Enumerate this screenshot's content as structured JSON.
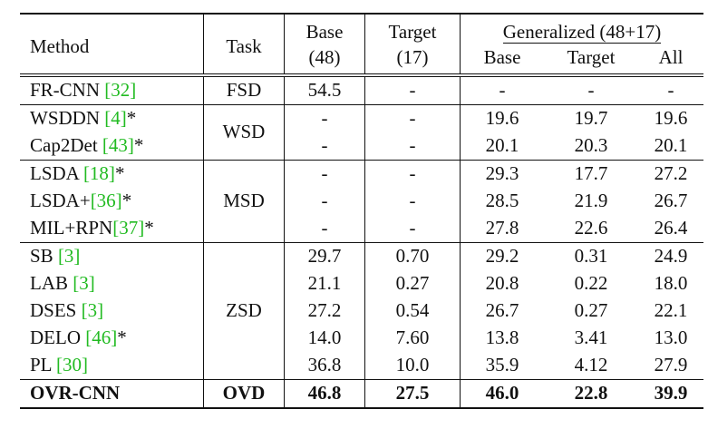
{
  "header": {
    "method": "Method",
    "task": "Task",
    "base_line1": "Base",
    "base_line2": "(48)",
    "target_line1": "Target",
    "target_line2": "(17)",
    "generalized": "Generalized (48+17)",
    "gen_base": "Base",
    "gen_target": "Target",
    "gen_all": "All"
  },
  "groups": [
    {
      "task": "FSD",
      "rows": [
        {
          "name": "FR-CNN ",
          "cite": "[32]",
          "suffix": "",
          "base": "54.5",
          "target": "-",
          "gbase": "-",
          "gtarget": "-",
          "gall": "-"
        }
      ]
    },
    {
      "task": "WSD",
      "rows": [
        {
          "name": "WSDDN ",
          "cite": "[4]",
          "suffix": "*",
          "base": "-",
          "target": "-",
          "gbase": "19.6",
          "gtarget": "19.7",
          "gall": "19.6"
        },
        {
          "name": "Cap2Det ",
          "cite": "[43]",
          "suffix": "*",
          "base": "-",
          "target": "-",
          "gbase": "20.1",
          "gtarget": "20.3",
          "gall": "20.1"
        }
      ]
    },
    {
      "task": "MSD",
      "rows": [
        {
          "name": "LSDA ",
          "cite": "[18]",
          "suffix": "*",
          "base": "-",
          "target": "-",
          "gbase": "29.3",
          "gtarget": "17.7",
          "gall": "27.2"
        },
        {
          "name": "LSDA+",
          "cite": "[36]",
          "suffix": "*",
          "base": "-",
          "target": "-",
          "gbase": "28.5",
          "gtarget": "21.9",
          "gall": "26.7"
        },
        {
          "name": "MIL+RPN",
          "cite": "[37]",
          "suffix": "*",
          "base": "-",
          "target": "-",
          "gbase": "27.8",
          "gtarget": "22.6",
          "gall": "26.4"
        }
      ]
    },
    {
      "task": "ZSD",
      "rows": [
        {
          "name": "SB ",
          "cite": "[3]",
          "suffix": "",
          "base": "29.7",
          "target": "0.70",
          "gbase": "29.2",
          "gtarget": "0.31",
          "gall": "24.9"
        },
        {
          "name": "LAB ",
          "cite": "[3]",
          "suffix": "",
          "base": "21.1",
          "target": "0.27",
          "gbase": "20.8",
          "gtarget": "0.22",
          "gall": "18.0"
        },
        {
          "name": "DSES ",
          "cite": "[3]",
          "suffix": "",
          "base": "27.2",
          "target": "0.54",
          "gbase": "26.7",
          "gtarget": "0.27",
          "gall": "22.1"
        },
        {
          "name": "DELO ",
          "cite": "[46]",
          "suffix": "*",
          "base": "14.0",
          "target": "7.60",
          "gbase": "13.8",
          "gtarget": "3.41",
          "gall": "13.0"
        },
        {
          "name": "PL ",
          "cite": "[30]",
          "suffix": "",
          "base": "36.8",
          "target": "10.0",
          "gbase": "35.9",
          "gtarget": "4.12",
          "gall": "27.9"
        }
      ]
    }
  ],
  "final": {
    "name": "OVR-CNN",
    "task": "OVD",
    "base": "46.8",
    "target": "27.5",
    "gbase": "46.0",
    "gtarget": "22.8",
    "gall": "39.9"
  },
  "colors": {
    "citation": "#22bb22",
    "text": "#111111"
  }
}
